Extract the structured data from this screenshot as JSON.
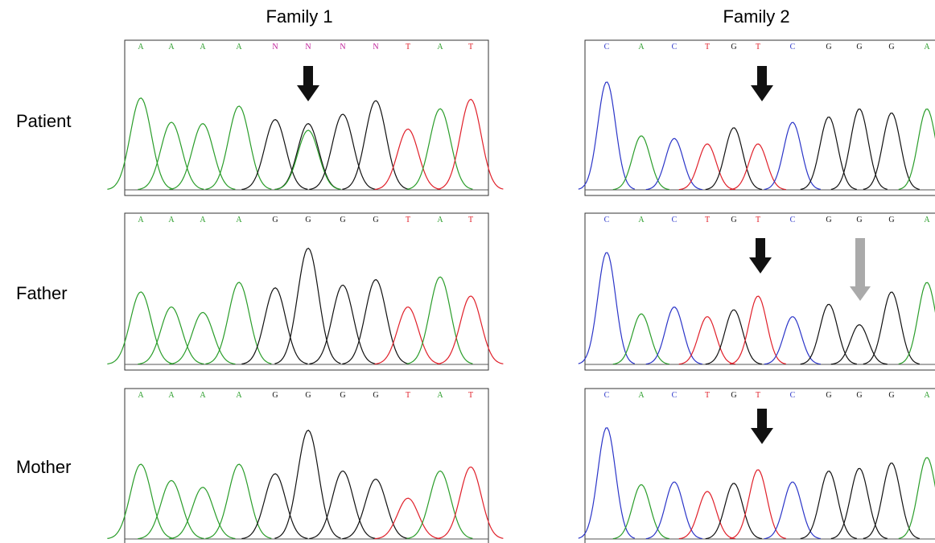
{
  "columns": [
    "Family 1",
    "Family 2"
  ],
  "rows": [
    "Patient",
    "Father",
    "Mother"
  ],
  "panels": [
    [
      [
        "A",
        "A",
        "A",
        "A",
        "N",
        "N",
        "N",
        "N",
        "T",
        "A",
        "T"
      ],
      [
        "A",
        "A",
        "A",
        "A",
        "G",
        "G",
        "G",
        "G",
        "T",
        "A",
        "T"
      ],
      [
        "A",
        "A",
        "A",
        "A",
        "G",
        "G",
        "G",
        "G",
        "T",
        "A",
        "T"
      ]
    ],
    [
      [
        "C",
        "A",
        "C",
        "T",
        "G",
        "T",
        "C",
        "G",
        "G",
        "G",
        "A"
      ],
      [
        "C",
        "A",
        "C",
        "T",
        "G",
        "T",
        "C",
        "G",
        "G",
        "G",
        "A"
      ],
      [
        "C",
        "A",
        "C",
        "T",
        "G",
        "T",
        "C",
        "G",
        "G",
        "G",
        "A"
      ]
    ]
  ]
}
